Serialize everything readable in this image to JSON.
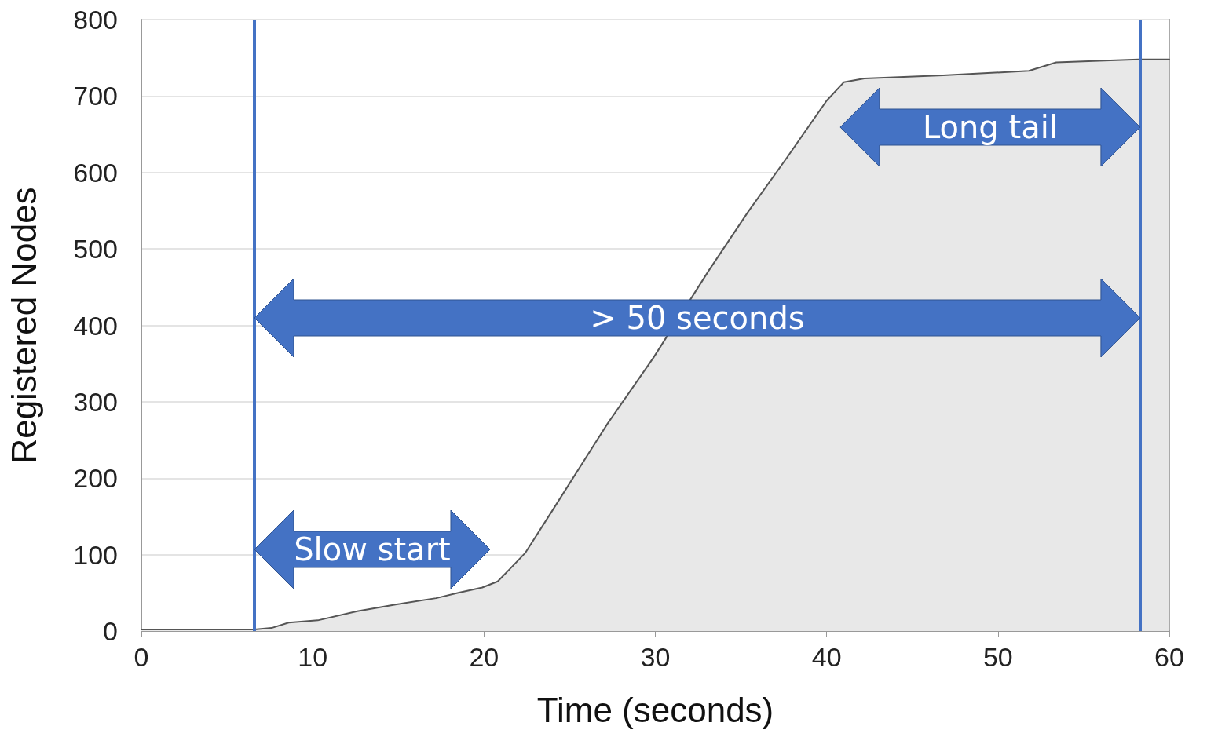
{
  "chart_data": {
    "type": "area",
    "xlabel": "Time (seconds)",
    "ylabel": "Registered Nodes",
    "xlim": [
      0,
      60
    ],
    "xticks": [
      0,
      10,
      20,
      30,
      40,
      50,
      60
    ],
    "ylim": [
      0,
      800
    ],
    "yticks": [
      0,
      100,
      200,
      300,
      400,
      500,
      600,
      700,
      800
    ],
    "grid": "y",
    "marker": "none",
    "line_style": "solid",
    "x": [
      0,
      6.6,
      7.6,
      8.6,
      10.3,
      12.6,
      14.9,
      17.2,
      18.5,
      19.9,
      20.8,
      21.5,
      22.4,
      24.0,
      27.2,
      29.9,
      33.1,
      35.4,
      37.7,
      40.0,
      41.0,
      42.2,
      46.8,
      51.8,
      53.4,
      55.9,
      58.2,
      60
    ],
    "series": [
      {
        "color": "#555555",
        "values": [
          2,
          2,
          4,
          11,
          14,
          26,
          35,
          43,
          50,
          57,
          65,
          81,
          102,
          158,
          271,
          358,
          471,
          548,
          620,
          694,
          718,
          723,
          727,
          733,
          744,
          746,
          748,
          748
        ]
      }
    ],
    "ref_lines": [
      {
        "axis": "x",
        "value": 6.6,
        "color": "#4472c4"
      },
      {
        "axis": "x",
        "value": 58.3,
        "color": "#4472c4"
      }
    ],
    "annotations": [
      "Slow start",
      "> 50 seconds",
      "Long tail"
    ]
  }
}
